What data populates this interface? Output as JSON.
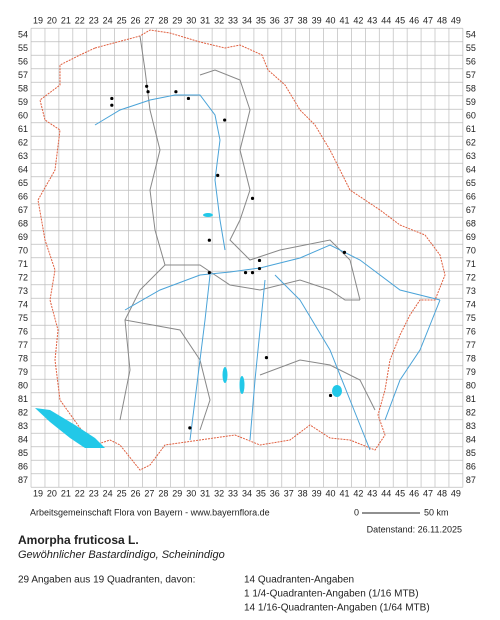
{
  "map": {
    "columns": [
      19,
      20,
      21,
      22,
      23,
      24,
      25,
      26,
      27,
      28,
      29,
      30,
      31,
      32,
      33,
      34,
      35,
      36,
      37,
      38,
      39,
      40,
      41,
      42,
      43,
      44,
      45,
      46,
      47,
      48,
      49
    ],
    "rows": [
      54,
      55,
      56,
      57,
      58,
      59,
      60,
      61,
      62,
      63,
      64,
      65,
      66,
      67,
      68,
      69,
      70,
      71,
      72,
      73,
      74,
      75,
      76,
      77,
      78,
      79,
      80,
      81,
      82,
      83,
      84,
      85,
      86,
      87
    ],
    "dots": [
      [
        24.3,
        58.7
      ],
      [
        24.3,
        59.2
      ],
      [
        26.8,
        57.8
      ],
      [
        26.9,
        58.2
      ],
      [
        28.9,
        58.2
      ],
      [
        29.8,
        58.7
      ],
      [
        32.4,
        60.3
      ],
      [
        31.9,
        64.4
      ],
      [
        34.4,
        66.1
      ],
      [
        31.3,
        69.2
      ],
      [
        34.9,
        70.7
      ],
      [
        41.0,
        70.1
      ],
      [
        31.3,
        71.6
      ],
      [
        33.9,
        71.6
      ],
      [
        34.4,
        71.6
      ],
      [
        34.9,
        71.3
      ],
      [
        35.4,
        77.9
      ],
      [
        40.0,
        80.7
      ],
      [
        29.9,
        83.1
      ]
    ],
    "credit": "Arbeitsgemeinschaft Flora von Bayern - www.bayernflora.de",
    "scale_start": "0",
    "scale_end": "50 km",
    "date": "Datenstand: 26.11.2025"
  },
  "species": {
    "name": "Amorpha fruticosa L.",
    "common_name": "Gewöhnlicher Bastardindigo, Scheinindigo",
    "summary": "29 Angaben aus 19 Quadranten, davon:",
    "details": [
      "14 Quadranten-Angaben",
      "1 1/4-Quadranten-Angaben (1/16 MTB)",
      "14 1/16-Quadranten-Angaben (1/64 MTB)"
    ]
  }
}
